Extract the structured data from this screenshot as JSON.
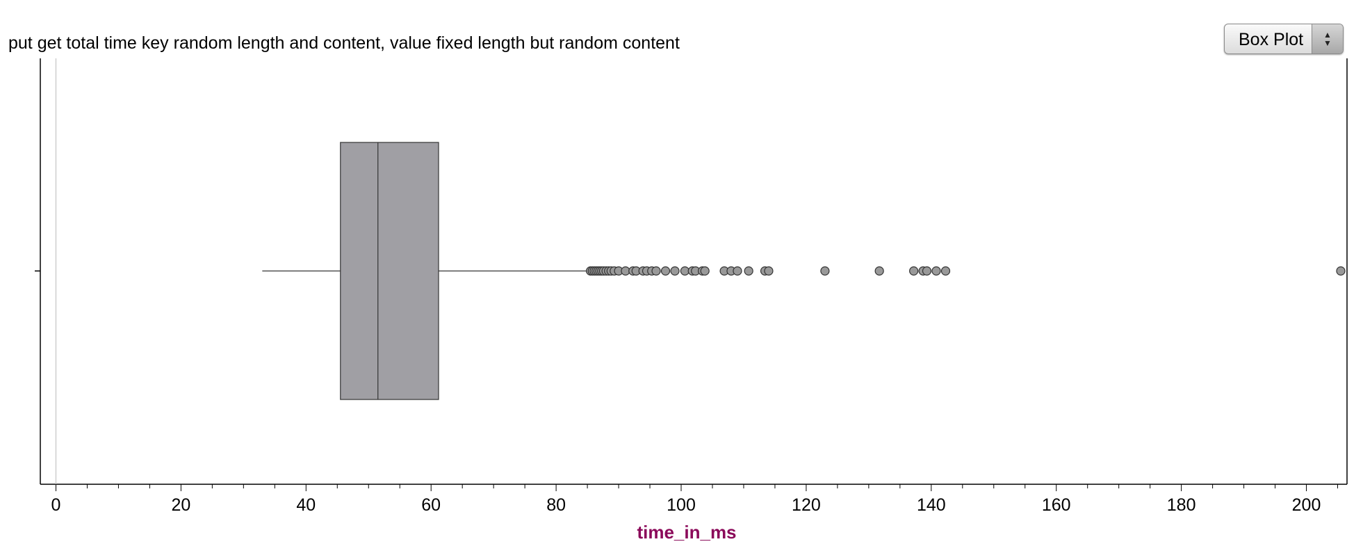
{
  "header": {
    "title": "put get total time key random length and content, value fixed length but random content"
  },
  "plot_type_select": {
    "selected": "Box Plot",
    "icon": "up-down-arrows-icon"
  },
  "colors": {
    "box_fill": "#a09fa4",
    "outlier_fill": "#999999",
    "stroke": "#333333",
    "axis_label": "#8b0a5a"
  },
  "chart_data": {
    "type": "box",
    "title": "put get total time key random length and content, value fixed length but random content",
    "xlabel": "time_in_ms",
    "ylabel": "",
    "xlim": [
      -2.5,
      206.5
    ],
    "xticks": [
      0,
      20,
      40,
      60,
      80,
      100,
      120,
      140,
      160,
      180,
      200
    ],
    "minor_tick_step": 5,
    "orientation": "horizontal",
    "grid": false,
    "box": {
      "whisker_low": 33,
      "q1": 45.5,
      "median": 51.5,
      "q3": 61.2,
      "whisker_high": 85.3
    },
    "outliers": [
      85.5,
      85.8,
      86.1,
      86.4,
      86.7,
      87.0,
      87.3,
      87.6,
      88.0,
      88.4,
      88.8,
      89.3,
      90.0,
      91.1,
      92.3,
      92.8,
      93.9,
      94.5,
      95.3,
      96.0,
      97.5,
      99.0,
      100.6,
      101.8,
      102.3,
      103.4,
      103.8,
      106.9,
      108.0,
      109.0,
      110.8,
      113.4,
      114.0,
      123.0,
      131.7,
      137.2,
      138.7,
      139.3,
      140.8,
      142.3,
      205.5
    ]
  }
}
